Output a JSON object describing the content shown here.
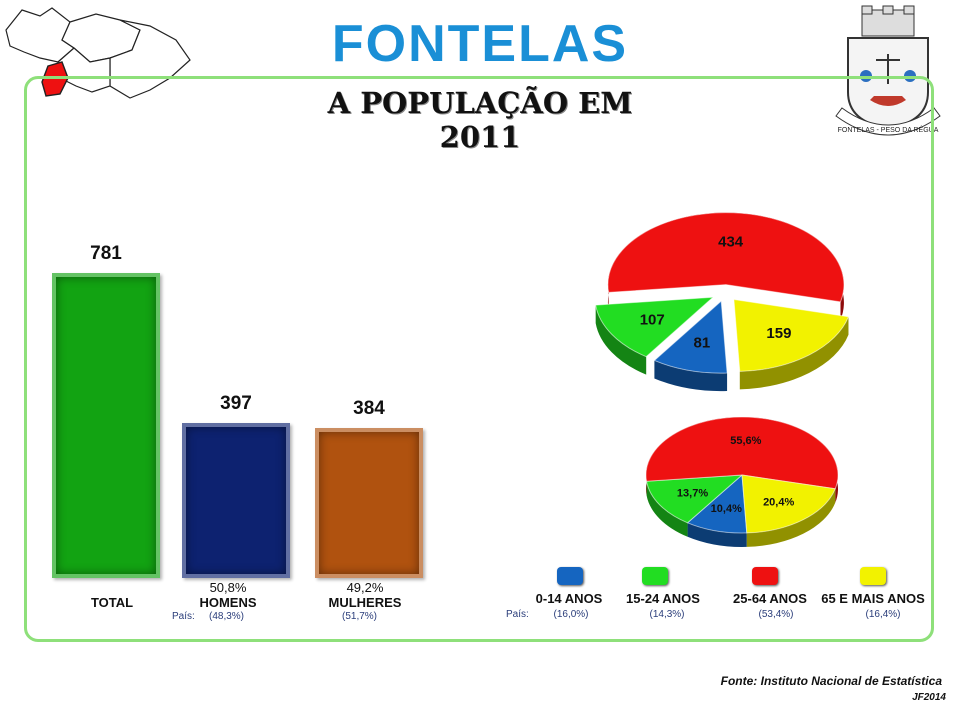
{
  "header": {
    "title": "FONTELAS",
    "subtitle": "A POPULAÇÃO EM 2011"
  },
  "crest": {
    "text": "FONTELAS - PESO DA RÉGUA"
  },
  "pais_label": "País:",
  "colors": {
    "total": "#12a312",
    "homens": "#0d2270",
    "mulheres": "#b0520f",
    "age_0_14": "#1565c0",
    "age_15_24": "#22dd22",
    "age_25_64": "#ee1111",
    "age_65": "#f2f200"
  },
  "chart_data": [
    {
      "type": "bar",
      "title": "",
      "categories": [
        "TOTAL",
        "HOMENS",
        "MULHERES"
      ],
      "values": [
        781,
        397,
        384
      ],
      "value_labels": [
        "781",
        "397",
        "384"
      ],
      "shares": [
        "",
        "50,8%",
        "49,2%"
      ],
      "pais": [
        "",
        "(48,3%)",
        "(51,7%)"
      ],
      "ylim": [
        0,
        800
      ]
    },
    {
      "type": "pie",
      "title": "",
      "categories": [
        "0-14 ANOS",
        "15-24 ANOS",
        "25-64 ANOS",
        "65 E MAIS ANOS"
      ],
      "values": [
        81,
        107,
        434,
        159
      ],
      "value_labels": [
        "81",
        "107",
        "434",
        "159"
      ],
      "exploded": true
    },
    {
      "type": "pie",
      "title": "",
      "categories": [
        "0-14 ANOS",
        "15-24 ANOS",
        "25-64 ANOS",
        "65 E MAIS ANOS"
      ],
      "values": [
        10.4,
        13.7,
        55.6,
        20.4
      ],
      "value_labels": [
        "10,4%",
        "13,7%",
        "55,6%",
        "20,4%"
      ]
    }
  ],
  "legend": {
    "items": [
      {
        "label": "0-14 ANOS",
        "pais": "(16,0%)"
      },
      {
        "label": "15-24 ANOS",
        "pais": "(14,3%)"
      },
      {
        "label": "25-64 ANOS",
        "pais": "(53,4%)"
      },
      {
        "label": "65 E MAIS ANOS",
        "pais": "(16,4%)"
      }
    ]
  },
  "footer": {
    "source": "Fonte: Instituto Nacional de Estatística",
    "credit": "JF2014"
  }
}
